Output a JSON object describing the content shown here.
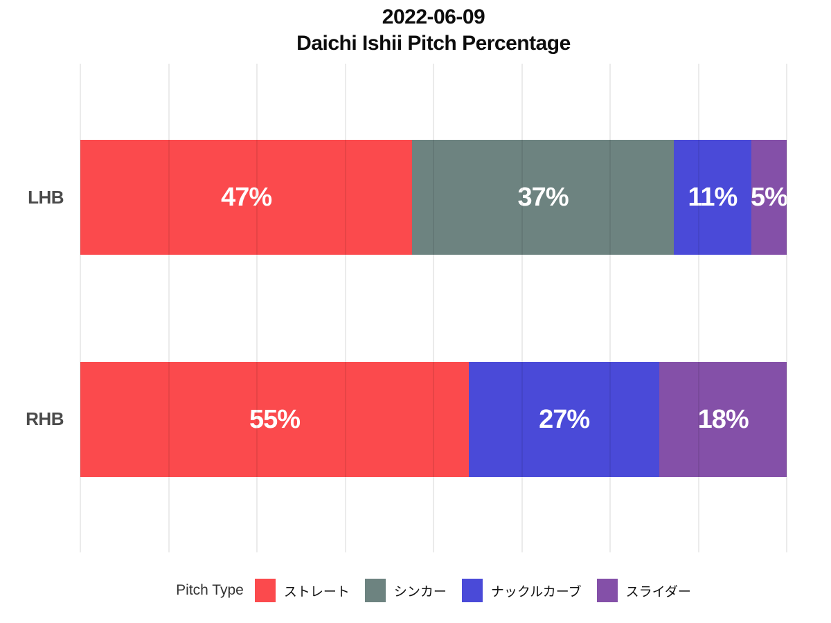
{
  "title": {
    "line1": "2022-06-09",
    "line2": "Daichi Ishii Pitch Percentage"
  },
  "chart_data": {
    "type": "bar",
    "orientation": "horizontal",
    "stacked": true,
    "title": "2022-06-09 Daichi Ishii Pitch Percentage",
    "categories": [
      "LHB",
      "RHB"
    ],
    "series": [
      {
        "name": "ストレート",
        "color": "#fb4a4d",
        "values": [
          47,
          55
        ]
      },
      {
        "name": "シンカー",
        "color": "#6d8380",
        "values": [
          37,
          0
        ]
      },
      {
        "name": "ナックルカーブ",
        "color": "#4a4ad8",
        "values": [
          11,
          27
        ]
      },
      {
        "name": "スライダー",
        "color": "#8450a8",
        "values": [
          5,
          18
        ]
      }
    ],
    "xlim": [
      0,
      100
    ],
    "unit": "%",
    "value_label_format": "{value}%",
    "grid": "vertical gridlines every 12.5%",
    "legend_position": "bottom",
    "legend_title": "Pitch Type"
  },
  "legend": {
    "title": "Pitch Type",
    "items": [
      {
        "label": "ストレート",
        "color": "#fb4a4d"
      },
      {
        "label": "シンカー",
        "color": "#6d8380"
      },
      {
        "label": "ナックルカーブ",
        "color": "#4a4ad8"
      },
      {
        "label": "スライダー",
        "color": "#8450a8"
      }
    ]
  }
}
